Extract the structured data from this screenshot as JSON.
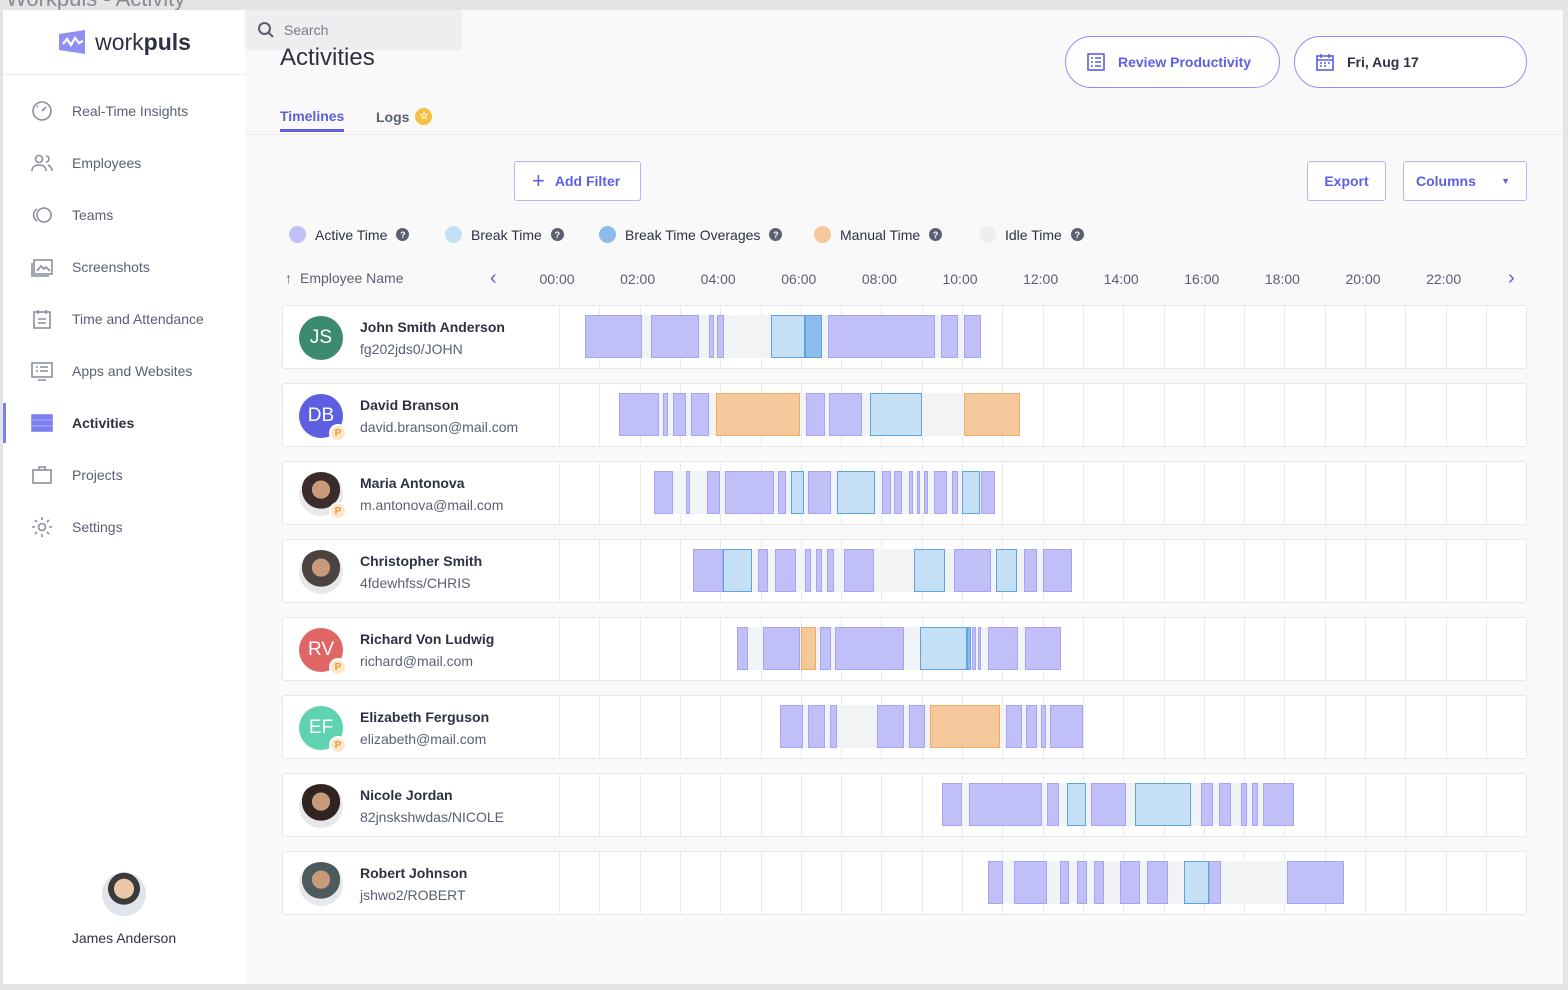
{
  "window_title": "Workpuls - Activity",
  "brand": {
    "light": "work",
    "bold": "puls"
  },
  "sidebar": {
    "items": [
      {
        "label": "Real-Time Insights",
        "icon": "dashboard-gauge-icon"
      },
      {
        "label": "Employees",
        "icon": "users-icon"
      },
      {
        "label": "Teams",
        "icon": "teams-icon"
      },
      {
        "label": "Screenshots",
        "icon": "image-icon"
      },
      {
        "label": "Time and Attendance",
        "icon": "calendar-icon"
      },
      {
        "label": "Apps and Websites",
        "icon": "monitor-icon"
      },
      {
        "label": "Activities",
        "icon": "activities-list-icon",
        "active": true
      },
      {
        "label": "Projects",
        "icon": "briefcase-icon"
      },
      {
        "label": "Settings",
        "icon": "gear-icon"
      }
    ],
    "user": {
      "name": "James Anderson"
    }
  },
  "header": {
    "title": "Activities",
    "review_label": "Review Productivity",
    "date_label": "Fri, Aug 17"
  },
  "tabs": [
    {
      "label": "Timelines",
      "active": true
    },
    {
      "label": "Logs"
    }
  ],
  "toolbar": {
    "search_placeholder": "Search",
    "add_filter": "Add Filter",
    "export": "Export",
    "columns": "Columns"
  },
  "legend": [
    {
      "label": "Active Time",
      "color": "#c1bff7"
    },
    {
      "label": "Break Time",
      "color": "#c5e0f5"
    },
    {
      "label": "Break Time Overages",
      "color": "#8bbcec"
    },
    {
      "label": "Manual Time",
      "color": "#f4c89a"
    },
    {
      "label": "Idle Time",
      "color": "#eceef1"
    }
  ],
  "colors": {
    "accent": "#5b5fe0",
    "active": "#c1bff7",
    "active_border": "#a8a4f5",
    "break": "#c5e0f5",
    "break_border": "#5ea4e0",
    "overage": "#8bbcec",
    "manual": "#f4c89a",
    "manual_border": "#f0ac66",
    "idle": "#f2f3f5"
  },
  "table": {
    "name_header": "Employee Name",
    "hours": [
      "00:00",
      "02:00",
      "04:00",
      "06:00",
      "08:00",
      "10:00",
      "12:00",
      "14:00",
      "16:00",
      "18:00",
      "20:00",
      "22:00"
    ]
  },
  "employees": [
    {
      "name": "John Smith Anderson",
      "sub": "fg202jds0/JOHN",
      "initials": "JS",
      "avatar_color": "#3d8b6f",
      "badge": "",
      "segments": [
        [
          0.65,
          2.06,
          "active"
        ],
        [
          2.28,
          3.47,
          "active"
        ],
        [
          3.72,
          3.85,
          "active"
        ],
        [
          3.92,
          4.09,
          "active"
        ],
        [
          4.09,
          5.26,
          "idle"
        ],
        [
          5.26,
          6.1,
          "break"
        ],
        [
          6.1,
          6.52,
          "overage"
        ],
        [
          6.67,
          9.33,
          "active"
        ],
        [
          9.48,
          9.9,
          "active"
        ],
        [
          10.05,
          10.47,
          "active"
        ]
      ]
    },
    {
      "name": "David Branson",
      "sub": "david.branson@mail.com",
      "initials": "DB",
      "avatar_color": "#5b5fe0",
      "badge": "P",
      "segments": [
        [
          1.5,
          2.47,
          "active"
        ],
        [
          2.58,
          2.71,
          "active"
        ],
        [
          2.82,
          3.16,
          "active"
        ],
        [
          3.27,
          3.73,
          "active"
        ],
        [
          3.9,
          5.97,
          "manual"
        ],
        [
          6.14,
          6.6,
          "active"
        ],
        [
          6.71,
          7.51,
          "active"
        ],
        [
          7.71,
          9.0,
          "break"
        ],
        [
          9.0,
          10.04,
          "idle"
        ],
        [
          10.04,
          11.44,
          "manual"
        ]
      ]
    },
    {
      "name": "Maria Antonova",
      "sub": "m.antonova@mail.com",
      "initials": "",
      "avatar_color": "#3a2c2c",
      "badge": "P",
      "segments": [
        [
          2.36,
          2.82,
          "active"
        ],
        [
          3.15,
          3.24,
          "active"
        ],
        [
          3.67,
          3.99,
          "active"
        ],
        [
          4.12,
          5.33,
          "active"
        ],
        [
          5.43,
          5.63,
          "active"
        ],
        [
          5.76,
          6.07,
          "break"
        ],
        [
          6.17,
          6.76,
          "active"
        ],
        [
          6.9,
          7.83,
          "break"
        ],
        [
          8.02,
          8.23,
          "active"
        ],
        [
          8.32,
          8.51,
          "active"
        ],
        [
          8.69,
          8.79,
          "active"
        ],
        [
          8.88,
          8.97,
          "active"
        ],
        [
          9.06,
          9.15,
          "active"
        ],
        [
          9.3,
          9.62,
          "active"
        ],
        [
          9.76,
          9.89,
          "active"
        ],
        [
          10.0,
          10.45,
          "break"
        ],
        [
          10.47,
          10.83,
          "active"
        ]
      ]
    },
    {
      "name": "Christopher Smith",
      "sub": "4fdewhfss/CHRIS",
      "initials": "",
      "avatar_color": "#4a4340",
      "badge": "",
      "segments": [
        [
          3.32,
          4.06,
          "active"
        ],
        [
          4.08,
          4.79,
          "break"
        ],
        [
          4.95,
          5.18,
          "active"
        ],
        [
          5.37,
          5.88,
          "active"
        ],
        [
          6.1,
          6.25,
          "active"
        ],
        [
          6.38,
          6.53,
          "active"
        ],
        [
          6.66,
          6.82,
          "active"
        ],
        [
          7.08,
          7.82,
          "active"
        ],
        [
          7.82,
          8.82,
          "idle"
        ],
        [
          8.82,
          9.59,
          "break"
        ],
        [
          9.81,
          10.71,
          "active"
        ],
        [
          10.85,
          11.36,
          "break"
        ],
        [
          11.55,
          11.87,
          "active"
        ],
        [
          12.0,
          12.73,
          "active"
        ]
      ]
    },
    {
      "name": "Richard Von Ludwig",
      "sub": "richard@mail.com",
      "initials": "RV",
      "avatar_color": "#e06666",
      "badge": "P",
      "segments": [
        [
          4.42,
          4.68,
          "active"
        ],
        [
          5.07,
          5.98,
          "active"
        ],
        [
          6.0,
          6.38,
          "manual"
        ],
        [
          6.48,
          6.75,
          "active"
        ],
        [
          6.86,
          8.57,
          "active"
        ],
        [
          8.95,
          10.12,
          "break"
        ],
        [
          10.12,
          10.22,
          "overage"
        ],
        [
          10.24,
          10.34,
          "active"
        ],
        [
          10.4,
          10.47,
          "active"
        ],
        [
          10.65,
          11.4,
          "active"
        ],
        [
          11.57,
          12.46,
          "active"
        ]
      ]
    },
    {
      "name": "Elizabeth Ferguson",
      "sub": "elizabeth@mail.com",
      "initials": "EF",
      "avatar_color": "#5fd3b0",
      "badge": "P",
      "segments": [
        [
          5.49,
          6.05,
          "active"
        ],
        [
          6.19,
          6.6,
          "active"
        ],
        [
          6.72,
          6.89,
          "active"
        ],
        [
          6.89,
          7.9,
          "idle"
        ],
        [
          7.9,
          8.57,
          "active"
        ],
        [
          8.68,
          9.07,
          "active"
        ],
        [
          9.2,
          10.95,
          "manual"
        ],
        [
          11.1,
          11.48,
          "active"
        ],
        [
          11.59,
          11.87,
          "active"
        ],
        [
          11.97,
          12.08,
          "active"
        ],
        [
          12.18,
          13.0,
          "active"
        ]
      ]
    },
    {
      "name": "Nicole Jordan",
      "sub": "82jnskshwdas/NICOLE",
      "initials": "",
      "avatar_color": "#2f2420",
      "badge": "",
      "segments": [
        [
          9.5,
          9.99,
          "active"
        ],
        [
          10.18,
          11.98,
          "active"
        ],
        [
          12.1,
          12.4,
          "active"
        ],
        [
          12.6,
          13.08,
          "break"
        ],
        [
          13.2,
          14.08,
          "active"
        ],
        [
          14.29,
          15.69,
          "break"
        ],
        [
          15.94,
          16.24,
          "active"
        ],
        [
          16.38,
          16.68,
          "active"
        ],
        [
          16.93,
          17.08,
          "active"
        ],
        [
          17.2,
          17.35,
          "active"
        ],
        [
          17.48,
          18.23,
          "active"
        ]
      ]
    },
    {
      "name": "Robert Johnson",
      "sub": "jshwo2/ROBERT",
      "initials": "",
      "avatar_color": "#4d5a5e",
      "badge": "",
      "segments": [
        [
          10.65,
          11.02,
          "active"
        ],
        [
          11.3,
          12.1,
          "active"
        ],
        [
          12.42,
          12.66,
          "active"
        ],
        [
          12.85,
          13.09,
          "active"
        ],
        [
          13.28,
          13.52,
          "active"
        ],
        [
          13.91,
          14.41,
          "active"
        ],
        [
          14.6,
          15.11,
          "active"
        ],
        [
          15.51,
          16.12,
          "break"
        ],
        [
          16.14,
          16.43,
          "active"
        ],
        [
          16.43,
          18.07,
          "idle"
        ],
        [
          18.07,
          19.47,
          "active"
        ]
      ]
    }
  ]
}
